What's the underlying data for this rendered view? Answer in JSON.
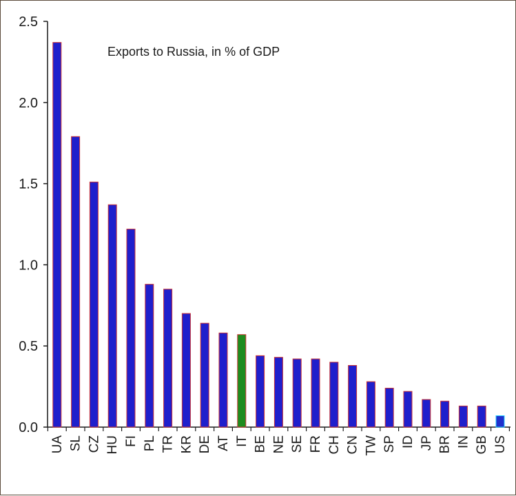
{
  "chart_data": {
    "type": "bar",
    "title": "Exports to Russia, in % of GDP",
    "xlabel": "",
    "ylabel": "",
    "ylim": [
      0,
      2.5
    ],
    "yticks": [
      "0.0",
      "0.5",
      "1.0",
      "1.5",
      "2.0",
      "2.5"
    ],
    "ytick_values": [
      0,
      0.5,
      1.0,
      1.5,
      2.0,
      2.5
    ],
    "grid": false,
    "legend": "none",
    "categories": [
      "UA",
      "SL",
      "CZ",
      "HU",
      "FI",
      "PL",
      "TR",
      "KR",
      "DE",
      "AT",
      "IT",
      "BE",
      "NE",
      "SE",
      "FR",
      "CH",
      "CN",
      "TW",
      "SP",
      "ID",
      "JP",
      "BR",
      "IN",
      "GB",
      "US"
    ],
    "values": [
      2.37,
      1.79,
      1.51,
      1.37,
      1.22,
      0.88,
      0.85,
      0.7,
      0.64,
      0.58,
      0.57,
      0.44,
      0.43,
      0.42,
      0.42,
      0.4,
      0.38,
      0.28,
      0.24,
      0.22,
      0.17,
      0.16,
      0.13,
      0.13,
      0.07
    ],
    "colors": {
      "default": "#1f1fcc",
      "outline": "#cc3333",
      "highlight_IT": "#1e8c1e",
      "highlight_US": "#1f2fcc",
      "highlight_US_outline": "#22ccff",
      "axis": "#1a1a1a"
    }
  }
}
